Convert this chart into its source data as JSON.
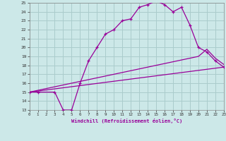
{
  "xlabel": "Windchill (Refroidissement éolien,°C)",
  "bg_color": "#cce8e8",
  "line_color": "#990099",
  "grid_color": "#aacccc",
  "xmin": 0,
  "xmax": 23,
  "ymin": 13,
  "ymax": 25,
  "series1_x": [
    0,
    1,
    3,
    4,
    5,
    6,
    7,
    8,
    9,
    10,
    11,
    12,
    13,
    14,
    15,
    16,
    17,
    18,
    19,
    20,
    21,
    22,
    23
  ],
  "series1_y": [
    15,
    15,
    15,
    13,
    13,
    16,
    18.5,
    20,
    21.5,
    22,
    23,
    23.2,
    24.5,
    24.8,
    25.2,
    24.8,
    24,
    24.5,
    22.5,
    20,
    19.5,
    18.5,
    17.8
  ],
  "series2_x": [
    0,
    23
  ],
  "series2_y": [
    15,
    17.8
  ],
  "series3_x": [
    0,
    20,
    21,
    22,
    23
  ],
  "series3_y": [
    15,
    19.0,
    19.8,
    18.8,
    18.1
  ],
  "xtick_labels": [
    "0",
    "1",
    "2",
    "3",
    "4",
    "5",
    "6",
    "7",
    "8",
    "9",
    "10",
    "11",
    "12",
    "13",
    "14",
    "15",
    "16",
    "17",
    "18",
    "19",
    "20",
    "21",
    "22",
    "23"
  ],
  "ytick_labels": [
    "13",
    "14",
    "15",
    "16",
    "17",
    "18",
    "19",
    "20",
    "21",
    "22",
    "23",
    "24",
    "25"
  ]
}
